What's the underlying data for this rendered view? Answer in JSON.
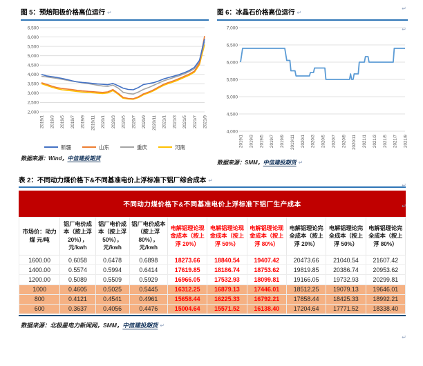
{
  "marks": {
    "glyph": "↵"
  },
  "colors": {
    "rule": "#2E75B6",
    "banner_bg": "#C00000",
    "banner_text": "#FFFFFF",
    "highlight_row": "#F5B183",
    "red_text": "#FF0000",
    "grid": "#D9D9D9",
    "axis_text": "#595959",
    "bottom_rule": "#1F4E79",
    "link": "#17375E"
  },
  "figures": [
    {
      "label": "图 5：",
      "title": "预焙阳极价格高位运行",
      "source_prefix": "数据来源：Wind，",
      "source_link": "中信建投期货"
    },
    {
      "label": "图 6：",
      "title": "冰晶石价格高位运行",
      "source_prefix": "数据来源：SMM，",
      "source_link": "中信建投期货"
    }
  ],
  "chart_data": [
    {
      "type": "line",
      "title": "预焙阳极价格高位运行",
      "xlabel": "",
      "ylabel": "",
      "ylim": [
        2000,
        6500
      ],
      "ytick_step": 500,
      "grid": true,
      "legend_position": "bottom",
      "x_ticks": [
        "2019/1",
        "2019/3",
        "2019/5",
        "2019/7",
        "2019/9",
        "2019/11",
        "2020/1",
        "2020/3",
        "2020/5",
        "2020/7",
        "2020/9",
        "2020/11",
        "2021/1",
        "2021/3",
        "2021/5",
        "2021/7",
        "2021/9"
      ],
      "x_unit": "month-index 0-32 (monthly from 2019/1 to 2021/9)",
      "series": [
        {
          "name": "新疆",
          "color": "#4472C4",
          "values": [
            4000,
            3920,
            3880,
            3840,
            3790,
            3730,
            3660,
            3600,
            3570,
            3550,
            3520,
            3490,
            3470,
            3450,
            3520,
            3400,
            3270,
            3200,
            3180,
            3300,
            3460,
            3510,
            3560,
            3650,
            3760,
            3840,
            3910,
            3990,
            4090,
            4210,
            4380,
            4750,
            5900
          ]
        },
        {
          "name": "山东",
          "color": "#ED7D31",
          "values": [
            3560,
            3470,
            3380,
            3300,
            3250,
            3220,
            3190,
            3150,
            3120,
            3100,
            3080,
            3060,
            3040,
            3070,
            3190,
            3000,
            2780,
            2720,
            2700,
            2800,
            2960,
            3060,
            3180,
            3330,
            3480,
            3580,
            3670,
            3780,
            3900,
            4020,
            4180,
            4600,
            6050
          ]
        },
        {
          "name": "重庆",
          "color": "#A5A5A5",
          "values": [
            3900,
            3870,
            3830,
            3790,
            3740,
            3690,
            3640,
            3600,
            3560,
            3520,
            3470,
            3420,
            3380,
            3360,
            3430,
            3280,
            3050,
            2980,
            2950,
            3060,
            3200,
            3300,
            3420,
            3540,
            3660,
            3750,
            3840,
            3930,
            4030,
            4150,
            4310,
            4680,
            5750
          ]
        },
        {
          "name": "河南",
          "color": "#FFC000",
          "values": [
            3500,
            3410,
            3320,
            3240,
            3180,
            3150,
            3120,
            3090,
            3060,
            3040,
            3020,
            3000,
            2980,
            3010,
            3140,
            2950,
            2730,
            2690,
            2670,
            2760,
            2910,
            3010,
            3130,
            3280,
            3420,
            3520,
            3610,
            3720,
            3840,
            3960,
            4120,
            4520,
            5600
          ]
        }
      ]
    },
    {
      "type": "line",
      "title": "冰晶石价格高位运行",
      "xlabel": "",
      "ylabel": "",
      "ylim": [
        4000,
        7000
      ],
      "ytick_step": 500,
      "grid": true,
      "legend_position": "none",
      "x_ticks": [
        "2019/1",
        "2019/3",
        "2019/5",
        "2019/7",
        "2019/9",
        "2019/11",
        "2020/1",
        "2020/3",
        "2020/5",
        "2020/7",
        "2020/9",
        "2020/11",
        "2021/1",
        "2021/3",
        "2021/5",
        "2021/7",
        "2021/9"
      ],
      "x_unit": "month-index 0-32 (monthly from 2019/1 to 2021/9), step series",
      "series": [
        {
          "name": "冰晶石价格",
          "color": "#5B9BD5",
          "points": [
            [
              0,
              6000
            ],
            [
              0.4,
              6400
            ],
            [
              8.6,
              6400
            ],
            [
              9,
              6050
            ],
            [
              9.6,
              6050
            ],
            [
              9.8,
              5750
            ],
            [
              10.6,
              5750
            ],
            [
              10.8,
              5600
            ],
            [
              13.4,
              5600
            ],
            [
              13.6,
              5700
            ],
            [
              14.2,
              5700
            ],
            [
              14.4,
              5830
            ],
            [
              16.4,
              5830
            ],
            [
              16.6,
              5500
            ],
            [
              21.2,
              5500
            ],
            [
              21.4,
              5660
            ],
            [
              21.6,
              5500
            ],
            [
              21.9,
              5500
            ],
            [
              22.1,
              5660
            ],
            [
              22.9,
              5660
            ],
            [
              23.1,
              6000
            ],
            [
              24.1,
              6000
            ],
            [
              24.3,
              6160
            ],
            [
              24.8,
              6160
            ],
            [
              25,
              6000
            ],
            [
              29.7,
              6000
            ],
            [
              29.9,
              6400
            ],
            [
              32,
              6400
            ]
          ]
        }
      ]
    }
  ],
  "table": {
    "label": "表 2：",
    "title": "不同动力煤价格下&不同基准电价上浮标准下铝厂综合成本",
    "banner": "不同动力煤价格下&不同基准电价上浮标准下铝厂生产成本",
    "headers": [
      "市场价：动力煤 元/吨",
      "铝厂电价成本（按上浮 20%），元/kwh",
      "铝厂电价成本（按上浮 50%），元/kwh",
      "铝厂电价成本（按上浮 80%），元/kwh",
      "电解铝理论现金成本（按上浮 20%）",
      "电解铝理论现金成本（按上浮 50%）",
      "电解铝理论现金成本（按上浮 80%）",
      "电解铝理论完全成本（按上浮 20%）",
      "电解铝理论完全成本（按上浮 50%）",
      "电解铝理论完全成本（按上浮 80%）"
    ],
    "red_header_indexes": [
      4,
      5,
      6
    ],
    "red_value_indexes": [
      3,
      4,
      5
    ],
    "rows": [
      {
        "coal": "1600.00",
        "highlight": false,
        "values": [
          "0.6058",
          "0.6478",
          "0.6898",
          "18273.66",
          "18840.54",
          "19407.42",
          "20473.66",
          "21040.54",
          "21607.42"
        ]
      },
      {
        "coal": "1400.00",
        "highlight": false,
        "values": [
          "0.5574",
          "0.5994",
          "0.6414",
          "17619.85",
          "18186.74",
          "18753.62",
          "19819.85",
          "20386.74",
          "20953.62"
        ]
      },
      {
        "coal": "1200.00",
        "highlight": false,
        "values": [
          "0.5089",
          "0.5509",
          "0.5929",
          "16966.05",
          "17532.93",
          "18099.81",
          "19166.05",
          "19732.93",
          "20299.81"
        ]
      },
      {
        "coal": "1000",
        "highlight": true,
        "values": [
          "0.4605",
          "0.5025",
          "0.5445",
          "16312.25",
          "16879.13",
          "17446.01",
          "18512.25",
          "19079.13",
          "19646.01"
        ]
      },
      {
        "coal": "800",
        "highlight": true,
        "values": [
          "0.4121",
          "0.4541",
          "0.4961",
          "15658.44",
          "16225.33",
          "16792.21",
          "17858.44",
          "18425.33",
          "18992.21"
        ]
      },
      {
        "coal": "600",
        "highlight": true,
        "values": [
          "0.3637",
          "0.4056",
          "0.4476",
          "15004.64",
          "15571.52",
          "16138.40",
          "17204.64",
          "17771.52",
          "18338.40"
        ]
      }
    ],
    "source_prefix": "数据来源：北极星电力新闻网，SMM，",
    "source_link": "中信建投期货"
  }
}
